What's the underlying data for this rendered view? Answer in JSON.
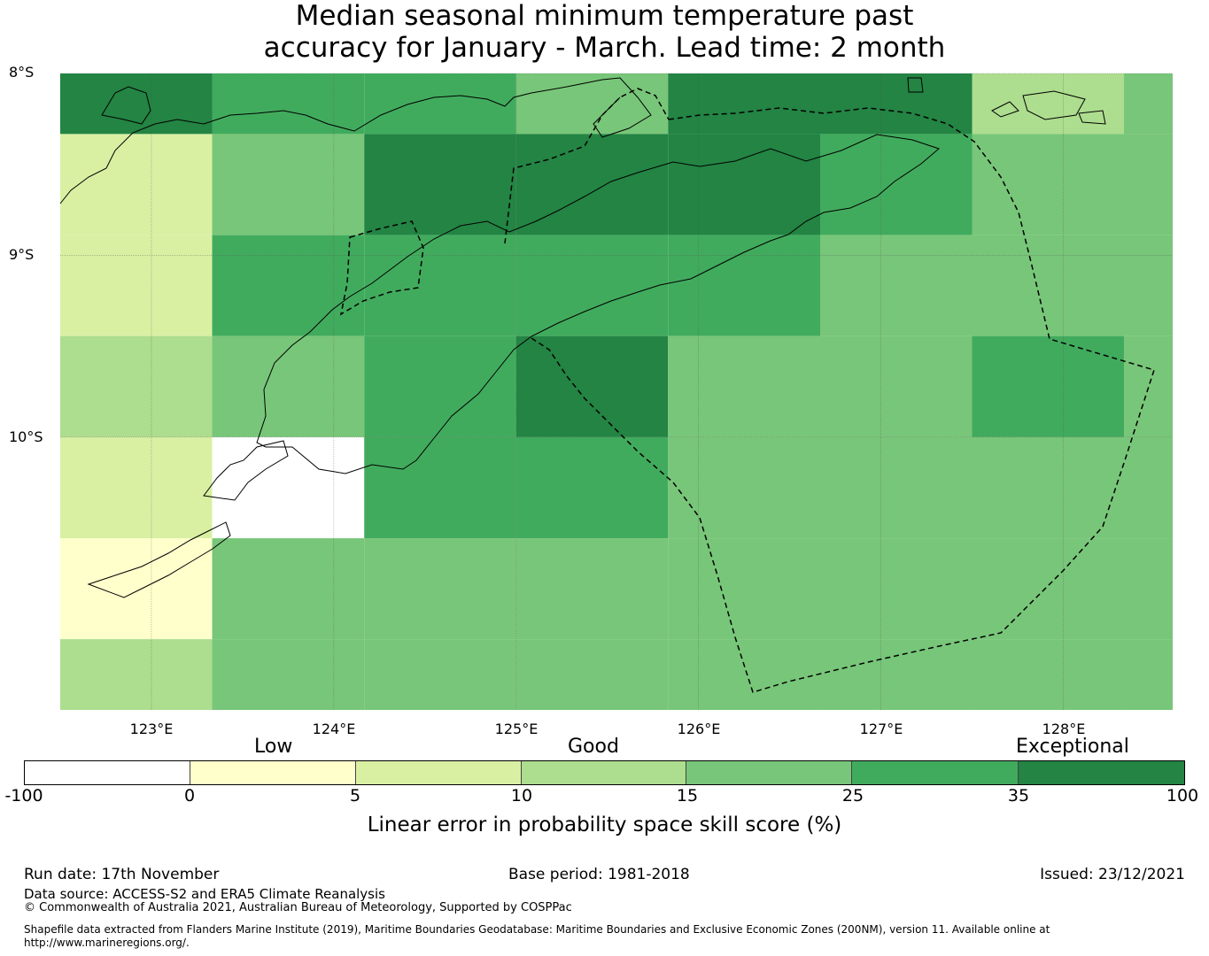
{
  "title": {
    "line1": "Median seasonal minimum temperature past",
    "line2": "accuracy for January - March. Lead time: 2 month"
  },
  "map": {
    "lat_labels": [
      "8°S",
      "9°S",
      "10°S"
    ],
    "lon_labels": [
      "123°E",
      "124°E",
      "125°E",
      "126°E",
      "127°E",
      "128°E"
    ],
    "lon_values": [
      123,
      124,
      125,
      126,
      127,
      128
    ],
    "lat_values": [
      -8,
      -9,
      -10
    ],
    "lon_range": [
      122.5,
      128.6
    ],
    "lat_range": [
      -8.0,
      -11.5
    ],
    "cell_lon_edges": [
      122.5,
      123.333,
      124.167,
      125.0,
      125.833,
      126.667,
      127.5,
      128.333,
      128.6
    ],
    "cell_lat_edges": [
      -8.0,
      -8.333,
      -8.889,
      -9.444,
      -10.0,
      -10.556,
      -11.111,
      -11.5
    ],
    "grid_skill_class": [
      [
        35,
        25,
        25,
        15,
        35,
        35,
        10,
        15
      ],
      [
        5,
        15,
        35,
        35,
        35,
        25,
        15,
        15
      ],
      [
        5,
        25,
        25,
        25,
        25,
        15,
        15,
        15
      ],
      [
        10,
        15,
        25,
        35,
        15,
        15,
        25,
        15
      ],
      [
        5,
        -100,
        25,
        25,
        15,
        15,
        15,
        15
      ],
      [
        0,
        15,
        15,
        15,
        15,
        15,
        15,
        15
      ],
      [
        10,
        15,
        15,
        15,
        15,
        15,
        15,
        15
      ]
    ],
    "quality_labels": [
      "Low",
      "Good",
      "Exceptional"
    ]
  },
  "colorbar": {
    "ticks": [
      "-100",
      "0",
      "5",
      "10",
      "15",
      "25",
      "35",
      "100"
    ],
    "colors": [
      "#ffffff",
      "#ffffcc",
      "#d9f0a3",
      "#addd8e",
      "#78c679",
      "#41ab5d",
      "#238443"
    ],
    "label": "Linear error in probability space skill score (%)"
  },
  "footer": {
    "run_date": "Run date: 17th November",
    "base_period": "Base period: 1981-2018",
    "issued": "Issued: 23/12/2021",
    "data_source": "Data source: ACCESS-S2 and ERA5 Climate Reanalysis",
    "copyright": "© Commonwealth of Australia 2021, Australian Bureau of Meteorology, Supported by COSPPac",
    "shapefile_line1": "Shapefile data extracted from Flanders Marine Institute (2019), Maritime Boundaries Geodatabase: Maritime Boundaries and Exclusive Economic Zones (200NM), version 11. Available online at",
    "shapefile_line2": "http://www.marineregions.org/."
  }
}
